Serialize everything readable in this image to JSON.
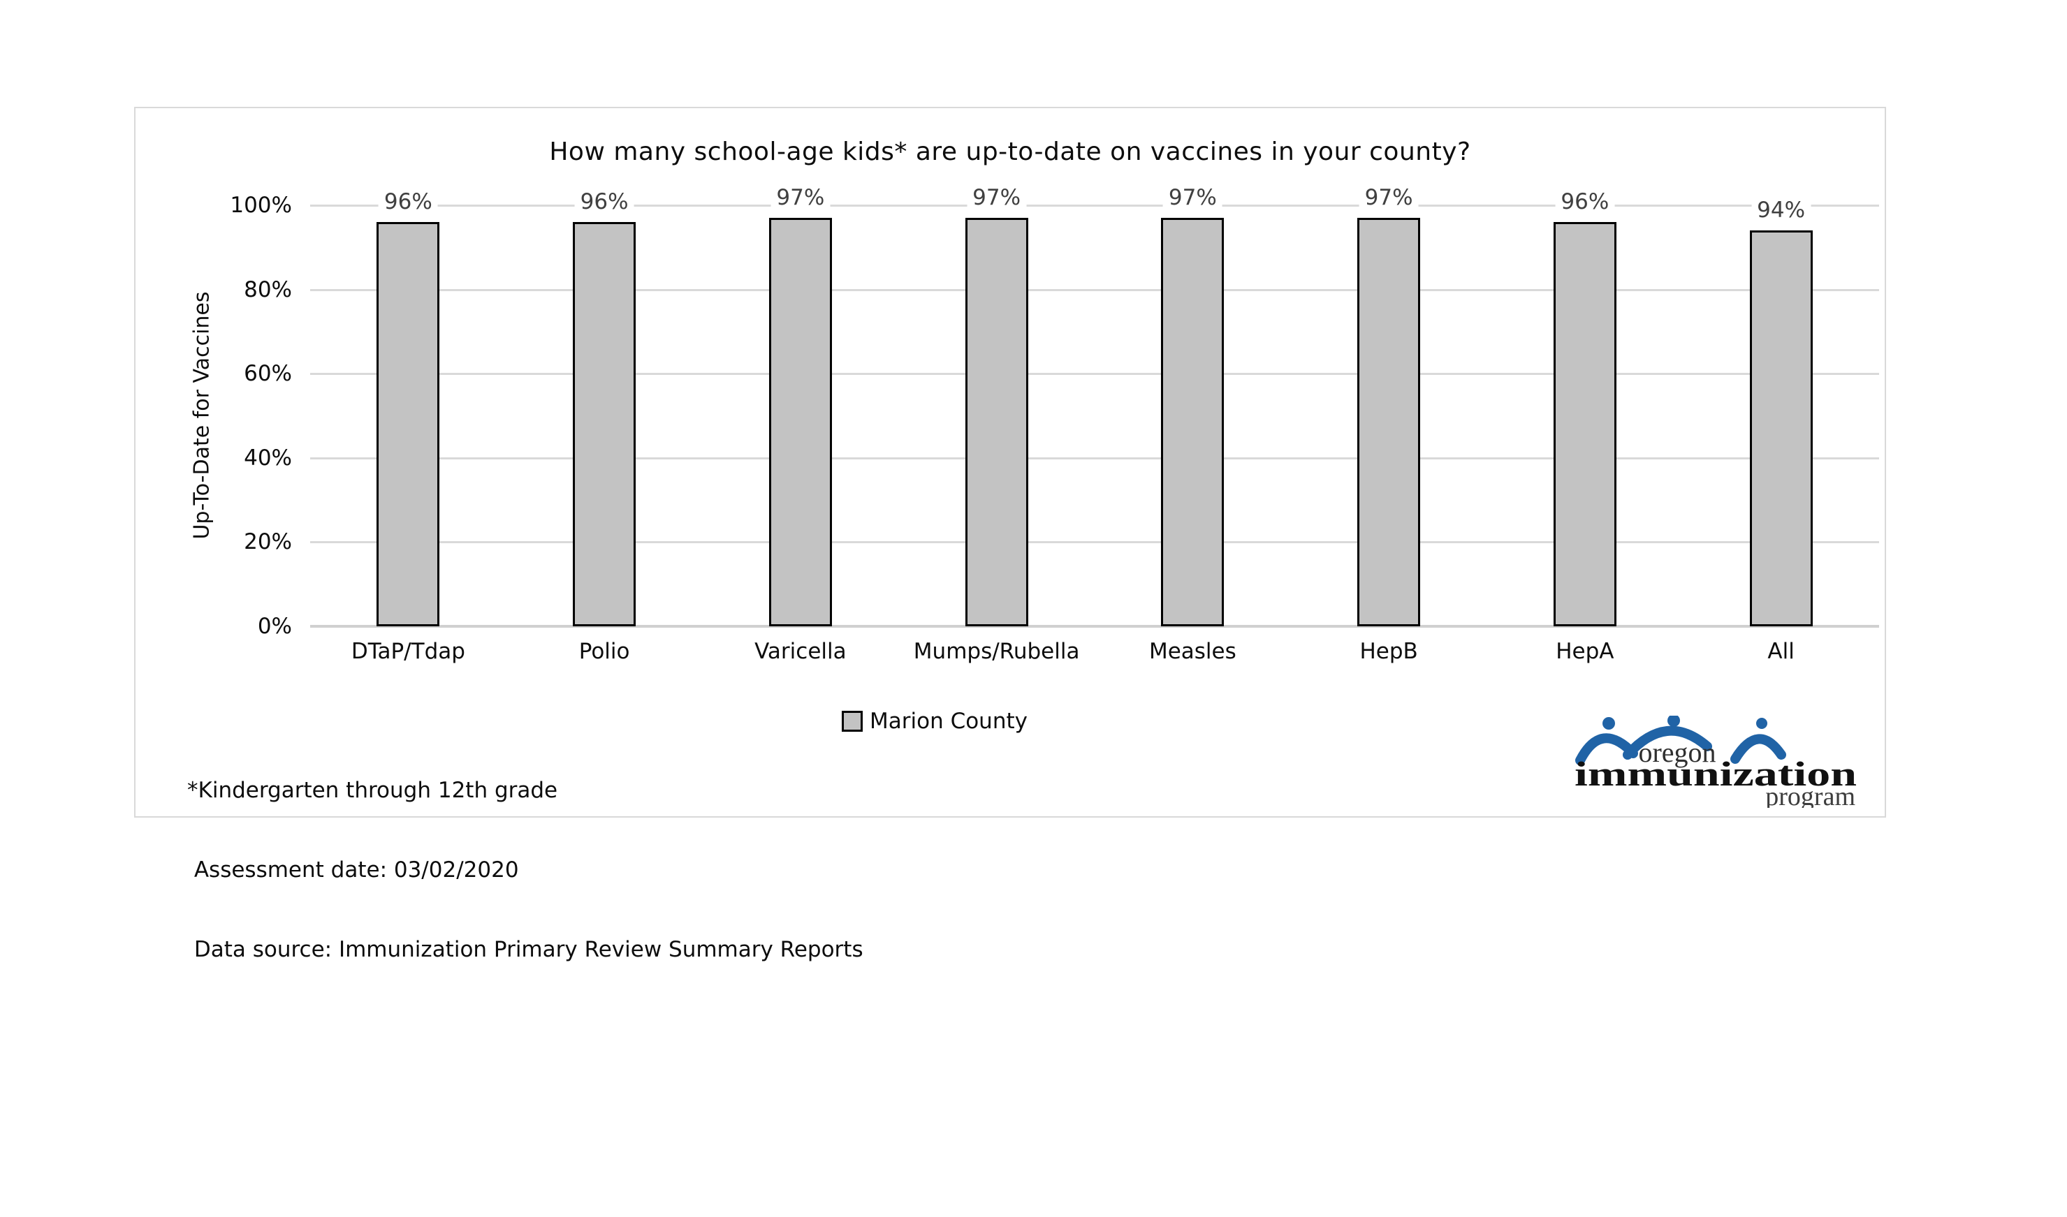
{
  "chart_data": {
    "type": "bar",
    "title": "How many school-age kids* are up-to-date on vaccines in your county?",
    "xlabel": "",
    "ylabel": "Up-To-Date for Vaccines",
    "categories": [
      "DTaP/Tdap",
      "Polio",
      "Varicella",
      "Mumps/Rubella",
      "Measles",
      "HepB",
      "HepA",
      "All"
    ],
    "values": [
      96,
      96,
      97,
      97,
      97,
      97,
      96,
      94
    ],
    "value_labels": [
      "96%",
      "96%",
      "97%",
      "97%",
      "97%",
      "97%",
      "96%",
      "94%"
    ],
    "series_name": "Marion County",
    "ylim": [
      0,
      100
    ],
    "yticks": [
      0,
      20,
      40,
      60,
      80,
      100
    ],
    "ytick_labels": [
      "0%",
      "20%",
      "40%",
      "60%",
      "80%",
      "100%"
    ],
    "grid": "horizontal",
    "legend": {
      "position": "bottom",
      "items": [
        {
          "label": "Marion County",
          "color": "#C3C3C3",
          "border": "#000000"
        }
      ]
    }
  },
  "colors": {
    "bar_fill": "#C3C3C3",
    "bar_border": "#000000",
    "gridline": "#D9D9D9",
    "axis_line": "#D0D0D0",
    "panel_border": "#D9D9D9",
    "value_label_color": "#404040",
    "logo_blue": "#2063A6"
  },
  "footnotes": {
    "line1": "*Kindergarten through 12th grade",
    "line2": " Assessment date: 03/02/2020",
    "line3": " Data source: Immunization Primary Review Summary Reports"
  },
  "logo": {
    "line1": "oregon",
    "line2": "immunization",
    "line3": "program"
  }
}
